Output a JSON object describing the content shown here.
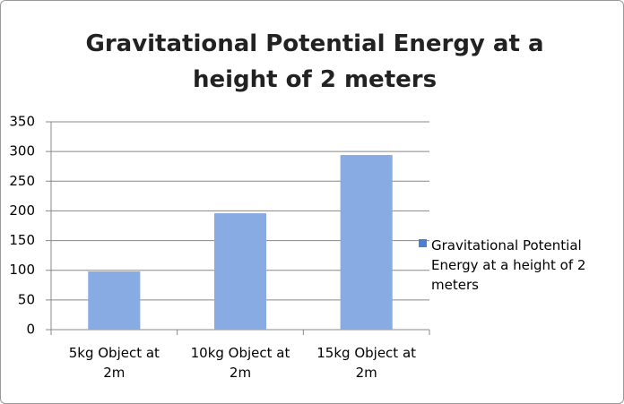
{
  "chart_data": {
    "type": "bar",
    "title": "Gravitational Potential Energy at a height of 2 meters",
    "categories": [
      "5kg Object at 2m",
      "10kg Object at 2m",
      "15kg Object at 2m"
    ],
    "series": [
      {
        "name": "Gravitational Potential Energy at a height of 2 meters",
        "color": "#4a7fd4",
        "values": [
          98,
          196,
          294
        ]
      }
    ],
    "ylim": [
      0,
      350
    ],
    "yticks": [
      0,
      50,
      100,
      150,
      200,
      250,
      300,
      350
    ],
    "grid": true,
    "legend": "right"
  }
}
